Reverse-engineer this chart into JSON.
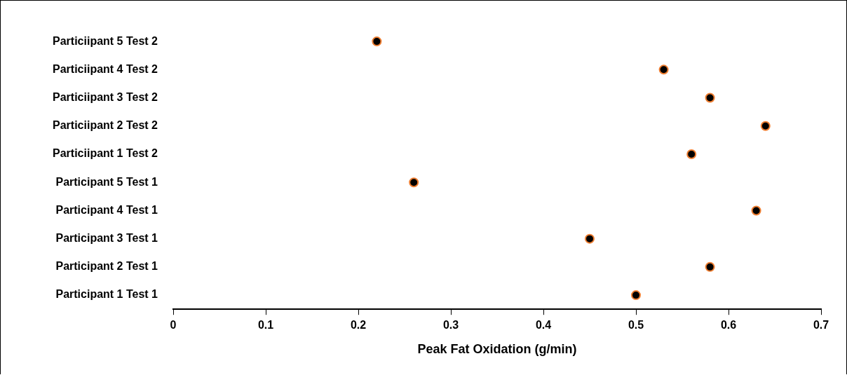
{
  "chart_data": {
    "type": "scatter",
    "orientation": "horizontal",
    "xlabel": "Peak Fat Oxidation (g/min)",
    "categories": [
      "Particiipant 5 Test 2",
      "Particiipant 4 Test 2",
      "Particiipant 3 Test 2",
      "Particiipant 2 Test 2",
      "Particiipant 1 Test 2",
      "Participant 5 Test 1",
      "Participant 4 Test 1",
      "Participant 3 Test 1",
      "Participant 2 Test 1",
      "Participant 1 Test 1"
    ],
    "series": [
      {
        "color": "#000000",
        "values": [
          0.22,
          0.53,
          0.58,
          0.64,
          0.56,
          0.26,
          0.63,
          0.45,
          0.58,
          0.5
        ]
      }
    ],
    "xlim": [
      0,
      0.7
    ],
    "xticks": [
      0,
      0.1,
      0.2,
      0.3,
      0.4,
      0.5,
      0.6,
      0.7
    ],
    "marker": "circle",
    "grid": false,
    "legend": false
  }
}
